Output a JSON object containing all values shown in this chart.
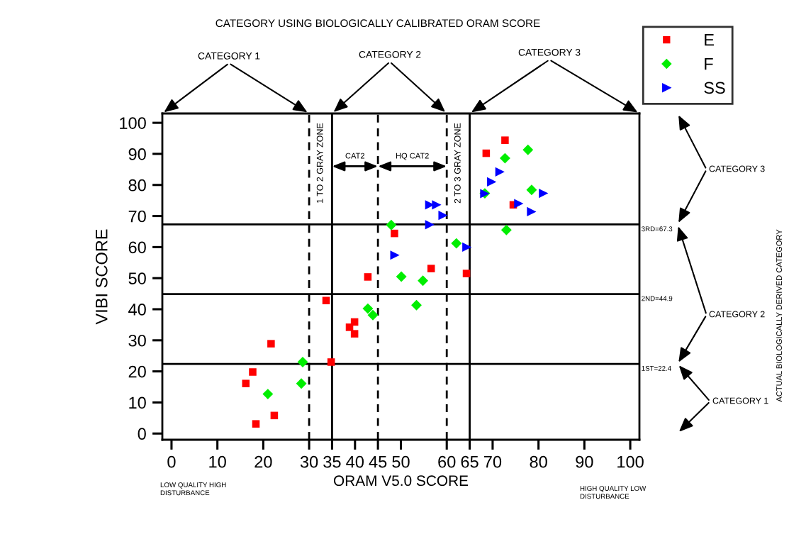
{
  "chart_data": {
    "type": "scatter",
    "title": "CATEGORY USING BIOLOGICALLY CALIBRATED ORAM SCORE",
    "xlabel": "ORAM V5.0 SCORE",
    "ylabel": "VIBI SCORE",
    "xlim": [
      -2,
      102
    ],
    "ylim": [
      -2,
      103
    ],
    "xticks": [
      0,
      10,
      20,
      30,
      35,
      40,
      45,
      50,
      60,
      65,
      70,
      80,
      90,
      100
    ],
    "yticks": [
      0,
      10,
      20,
      30,
      40,
      50,
      60,
      70,
      80,
      90,
      100
    ],
    "grid": false,
    "legend": "top right",
    "series": [
      {
        "name": "E",
        "color": "#ff0000",
        "marker": "square",
        "x": [
          42.8,
          33.7,
          39.9,
          38.8,
          39.9,
          21.7,
          34.8,
          17.7,
          16.2,
          22.4,
          18.4,
          72.7,
          68.6,
          74.5,
          48.6,
          56.6,
          64.3
        ],
        "values": [
          50.4,
          42.8,
          35.9,
          34.2,
          32.1,
          28.9,
          23.0,
          19.8,
          16.1,
          5.8,
          3.1,
          94.4,
          90.2,
          73.6,
          64.4,
          53.1,
          51.5
        ]
      },
      {
        "name": "F",
        "color": "#00ee00",
        "marker": "diamond",
        "x": [
          42.8,
          43.9,
          28.6,
          28.3,
          21.0,
          77.7,
          72.7,
          78.5,
          68.3,
          73.0,
          47.9,
          62.1,
          50.1,
          54.8,
          53.4
        ],
        "values": [
          40.2,
          38.1,
          23.0,
          16.1,
          12.7,
          91.3,
          88.6,
          78.4,
          77.3,
          65.5,
          67.1,
          61.2,
          50.5,
          49.2,
          41.3
        ]
      },
      {
        "name": "SS",
        "color": "#0000ff",
        "marker": "triangle",
        "x": [
          71.6,
          69.8,
          68.3,
          81.1,
          75.7,
          78.5,
          56.3,
          57.8,
          59.2,
          56.3,
          64.4,
          48.7
        ],
        "values": [
          84.2,
          81.0,
          77.2,
          77.3,
          74.0,
          71.4,
          73.6,
          73.6,
          70.2,
          67.2,
          60.0,
          57.4
        ]
      }
    ],
    "ref_lines": [
      {
        "axis": "x",
        "value": 30,
        "line_style": "dashed",
        "color": "#000000"
      },
      {
        "axis": "x",
        "value": 35,
        "line_style": "solid",
        "color": "#000000"
      },
      {
        "axis": "x",
        "value": 45,
        "line_style": "dashed",
        "color": "#000000"
      },
      {
        "axis": "x",
        "value": 60,
        "line_style": "dashed",
        "color": "#000000"
      },
      {
        "axis": "x",
        "value": 65,
        "line_style": "solid",
        "color": "#000000"
      },
      {
        "axis": "y",
        "value": 22.4,
        "label": "1ST=22.4",
        "color": "#000000"
      },
      {
        "axis": "y",
        "value": 44.9,
        "label": "2ND=44.9",
        "color": "#000000"
      },
      {
        "axis": "y",
        "value": 67.3,
        "label": "3RD=67.3",
        "color": "#000000"
      }
    ],
    "annotations": [
      "CATEGORY 1",
      "CATEGORY 2",
      "CATEGORY 3",
      "CATEGORY 3",
      "CATEGORY 2",
      "CATEGORY 1",
      "LOW QUALITY HIGH\nDISTURBANCE",
      "HIGH QUALITY LOW\nDISTURBANCE",
      "ACTUAL BIOLOGICALLY DERIVED CATEGORY",
      "1 TO 2 GRAY ZONE",
      "2 TO 3 GRAY ZONE",
      "CAT2",
      "HQ CAT2"
    ]
  }
}
